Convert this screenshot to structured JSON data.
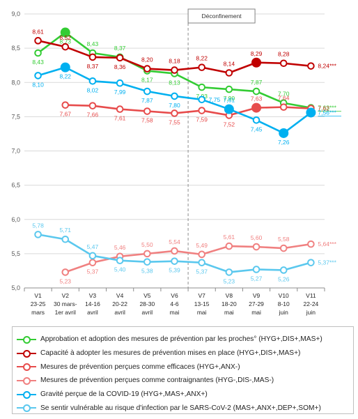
{
  "chart_data": {
    "type": "line",
    "ylim": [
      5.0,
      9.0
    ],
    "yticks": [
      "5,0",
      "5,5",
      "6,0",
      "6,5",
      "7,0",
      "7,5",
      "8,0",
      "8,5",
      "9,0"
    ],
    "ytick_values": [
      5.0,
      5.5,
      6.0,
      6.5,
      7.0,
      7.5,
      8.0,
      8.5,
      9.0
    ],
    "grid": "horizontal",
    "categories": [
      {
        "w": "V1",
        "d": "23-25",
        "m": "mars"
      },
      {
        "w": "V2",
        "d": "30 mars-",
        "m": "1er avril"
      },
      {
        "w": "V3",
        "d": "14-16",
        "m": "avril"
      },
      {
        "w": "V4",
        "d": "20-22",
        "m": "avril"
      },
      {
        "w": "V5",
        "d": "28-30",
        "m": "avril"
      },
      {
        "w": "V6",
        "d": "4-6",
        "m": "mai"
      },
      {
        "w": "V7",
        "d": "13-15",
        "m": "mai"
      },
      {
        "w": "V8",
        "d": "18-20",
        "m": "mai"
      },
      {
        "w": "V9",
        "d": "27-29",
        "m": "mai"
      },
      {
        "w": "V10",
        "d": "8-10",
        "m": "juin"
      },
      {
        "w": "V11",
        "d": "22-24",
        "m": "juin"
      }
    ],
    "annotation": {
      "label": "Déconfinement",
      "at_category": "V7"
    },
    "series": [
      {
        "name": "Approbation et adoption des mesures de prévention par les proches° (HYG+,DIS+,MAS+)",
        "color": "#33cc33",
        "solid": true,
        "big": [
          1
        ],
        "values": [
          8.43,
          8.73,
          8.43,
          8.37,
          8.17,
          8.13,
          7.93,
          7.9,
          7.87,
          7.7,
          7.63
        ],
        "labels": [
          "8,43",
          "8,73",
          "8,43",
          "8,37",
          "8,17",
          "8,13",
          "7,93",
          "7,90",
          "7,87",
          "7,70",
          "7,63***"
        ],
        "label_pos": [
          "below",
          "below",
          "above",
          "above",
          "below",
          "below",
          "below",
          "below",
          "above",
          "above",
          "right"
        ]
      },
      {
        "name": "Capacité à adopter les mesures de prévention mises en place (HYG+,DIS+,MAS+)",
        "color": "#c00000",
        "solid": true,
        "big": [
          8
        ],
        "values": [
          8.61,
          8.52,
          8.37,
          8.36,
          8.2,
          8.18,
          8.22,
          8.14,
          8.29,
          8.28,
          8.24
        ],
        "labels": [
          "8,61",
          "8,52",
          "8,37",
          "8,36",
          "8,20",
          "8,18",
          "8,22",
          "8,14",
          "8,29",
          "8,28",
          "8,24***"
        ],
        "label_pos": [
          "above",
          "above",
          "below",
          "below",
          "above",
          "above",
          "above",
          "above",
          "above",
          "above",
          "right"
        ]
      },
      {
        "name": "Mesures de prévention perçues comme efficaces (HYG+,ANX-)",
        "color": "#e74c4c",
        "solid": true,
        "big": [
          8
        ],
        "values": [
          null,
          7.67,
          7.66,
          7.61,
          7.58,
          7.55,
          7.59,
          7.52,
          7.63,
          7.64,
          7.62
        ],
        "labels": [
          "",
          "7,67",
          "7,66",
          "7,61",
          "7,58",
          "7,55",
          "7,59",
          "7,52",
          "7,63",
          "7,64",
          "7,62"
        ],
        "label_pos": [
          "",
          "below",
          "below",
          "below",
          "below",
          "below",
          "below",
          "below",
          "above",
          "above",
          "right"
        ]
      },
      {
        "name": "Mesures de prévention perçues comme contraignantes (HYG-,DIS-,MAS-)",
        "color": "#f08080",
        "solid": false,
        "big": [],
        "values": [
          null,
          5.23,
          5.37,
          5.46,
          5.5,
          5.54,
          5.49,
          5.61,
          5.6,
          5.58,
          5.64
        ],
        "labels": [
          "",
          "5,23",
          "5,37",
          "5,46",
          "5,50",
          "5,54",
          "5,49",
          "5,61",
          "5,60",
          "5,58",
          "5,64***"
        ],
        "label_pos": [
          "",
          "below",
          "below",
          "above",
          "above",
          "above",
          "above",
          "above",
          "above",
          "above",
          "right"
        ]
      },
      {
        "name": "Gravité perçue de la COVID-19 (HYG+,MAS+,ANX+)",
        "color": "#00b0f0",
        "solid": true,
        "big": [
          1,
          7,
          9,
          10
        ],
        "values": [
          8.1,
          8.22,
          8.02,
          7.99,
          7.87,
          7.8,
          7.75,
          7.61,
          7.45,
          7.26,
          7.56
        ],
        "labels": [
          "8,10",
          "8,22",
          "8,02",
          "7,99",
          "7,87",
          "7,80",
          "7,75",
          "7,61",
          "7,45",
          "7,26",
          "7,56***"
        ],
        "label_pos": [
          "below",
          "below",
          "below",
          "below",
          "below",
          "below",
          "right",
          "above",
          "below",
          "below",
          "right"
        ]
      },
      {
        "name": "Se sentir vulnérable au risque d'infection par le SARS-CoV-2 (MAS+,ANX+,DEP+,SOM+)",
        "color": "#5bc8ee",
        "solid": false,
        "big": [],
        "values": [
          5.78,
          5.71,
          5.47,
          5.4,
          5.38,
          5.39,
          5.37,
          5.23,
          5.27,
          5.26,
          5.37
        ],
        "labels": [
          "5,78",
          "5,71",
          "5,47",
          "5,40",
          "5,38",
          "5,39",
          "5,37",
          "5,23",
          "5,27",
          "5,26",
          "5,37***"
        ],
        "label_pos": [
          "above",
          "above",
          "above",
          "below",
          "below",
          "below",
          "below",
          "below",
          "below",
          "below",
          "right"
        ]
      }
    ]
  }
}
